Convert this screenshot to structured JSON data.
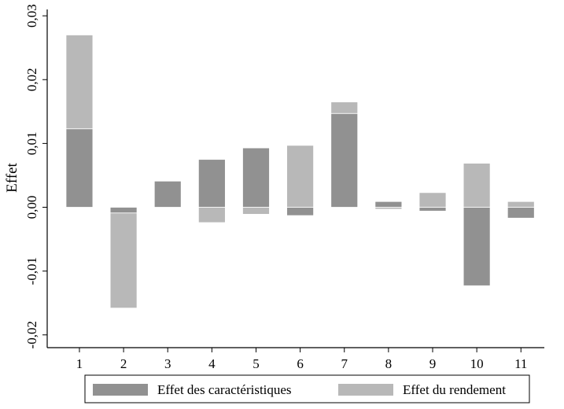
{
  "chart_data": {
    "type": "bar",
    "stacked": "diverging",
    "ylabel": "Effet",
    "xlabel": "",
    "ylim": [
      -0.022,
      0.031
    ],
    "yticks": [
      -0.02,
      -0.01,
      0.0,
      0.01,
      0.02,
      0.03
    ],
    "ytick_labels": [
      "-0,02",
      "-0,01",
      "0,00",
      "0,01",
      "0,02",
      "0,03"
    ],
    "categories": [
      "1",
      "2",
      "3",
      "4",
      "5",
      "6",
      "7",
      "8",
      "9",
      "10",
      "11"
    ],
    "series": [
      {
        "name": "Effet des caractéristiques",
        "color": "#919191",
        "values": [
          0.0123,
          -0.0009,
          0.0041,
          0.0075,
          0.0093,
          -0.0013,
          0.0147,
          0.0009,
          -0.0006,
          -0.0123,
          -0.0017
        ]
      },
      {
        "name": "Effet du rendement",
        "color": "#b8b8b8",
        "values": [
          0.0147,
          -0.0149,
          0.0,
          -0.0024,
          -0.0011,
          0.0097,
          0.0018,
          -0.0003,
          0.0023,
          0.0069,
          0.0009
        ]
      }
    ],
    "grid": false,
    "legend_position": "bottom"
  }
}
